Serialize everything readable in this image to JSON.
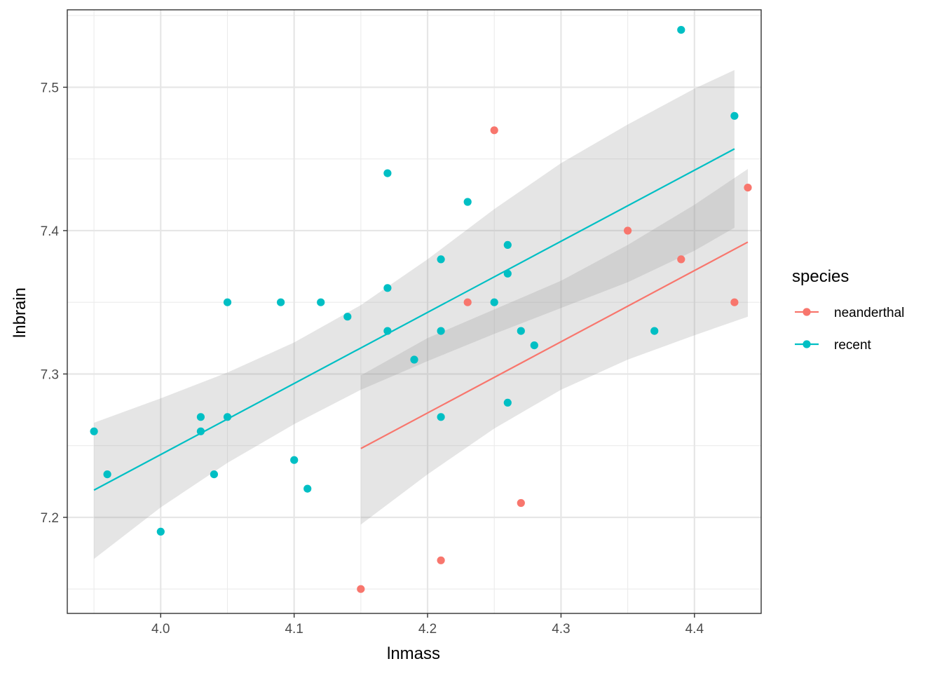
{
  "chart_data": {
    "type": "scatter",
    "xlabel": "lnmass",
    "ylabel": "lnbrain",
    "xlim": [
      3.93,
      4.45
    ],
    "ylim": [
      7.133,
      7.554
    ],
    "x_ticks": [
      4.0,
      4.1,
      4.2,
      4.3,
      4.4
    ],
    "x_tick_labels": [
      "4.0",
      "4.1",
      "4.2",
      "4.3",
      "4.4"
    ],
    "y_ticks": [
      7.2,
      7.3,
      7.4,
      7.5
    ],
    "y_tick_labels": [
      "7.2",
      "7.3",
      "7.4",
      "7.5"
    ],
    "grid": true,
    "theme": "bw",
    "legend": {
      "title": "species",
      "position": "right",
      "entries": [
        {
          "label": "neanderthal",
          "color": "#F8766D"
        },
        {
          "label": "recent",
          "color": "#00BFC4"
        }
      ]
    },
    "series": [
      {
        "name": "neanderthal",
        "color": "#F8766D",
        "points": [
          [
            4.15,
            7.15
          ],
          [
            4.21,
            7.17
          ],
          [
            4.23,
            7.35
          ],
          [
            4.25,
            7.47
          ],
          [
            4.27,
            7.21
          ],
          [
            4.35,
            7.4
          ],
          [
            4.39,
            7.38
          ],
          [
            4.43,
            7.35
          ],
          [
            4.44,
            7.43
          ]
        ],
        "fit": {
          "x": [
            4.15,
            4.44
          ],
          "y": [
            7.248,
            7.392
          ]
        },
        "ci": {
          "x": [
            4.15,
            4.2,
            4.25,
            4.3,
            4.35,
            4.4,
            4.44
          ],
          "lower": [
            7.195,
            7.23,
            7.262,
            7.289,
            7.31,
            7.327,
            7.34
          ],
          "upper": [
            7.299,
            7.325,
            7.345,
            7.365,
            7.39,
            7.418,
            7.443
          ]
        }
      },
      {
        "name": "recent",
        "color": "#00BFC4",
        "points": [
          [
            3.95,
            7.26
          ],
          [
            3.96,
            7.23
          ],
          [
            4.0,
            7.19
          ],
          [
            4.03,
            7.27
          ],
          [
            4.03,
            7.26
          ],
          [
            4.04,
            7.23
          ],
          [
            4.05,
            7.35
          ],
          [
            4.05,
            7.27
          ],
          [
            4.09,
            7.35
          ],
          [
            4.1,
            7.24
          ],
          [
            4.11,
            7.22
          ],
          [
            4.12,
            7.35
          ],
          [
            4.14,
            7.34
          ],
          [
            4.17,
            7.44
          ],
          [
            4.17,
            7.36
          ],
          [
            4.17,
            7.33
          ],
          [
            4.19,
            7.31
          ],
          [
            4.21,
            7.38
          ],
          [
            4.21,
            7.33
          ],
          [
            4.21,
            7.27
          ],
          [
            4.23,
            7.42
          ],
          [
            4.25,
            7.35
          ],
          [
            4.26,
            7.39
          ],
          [
            4.26,
            7.37
          ],
          [
            4.26,
            7.28
          ],
          [
            4.27,
            7.33
          ],
          [
            4.28,
            7.32
          ],
          [
            4.37,
            7.33
          ],
          [
            4.39,
            7.54
          ],
          [
            4.43,
            7.48
          ]
        ],
        "fit": {
          "x": [
            3.95,
            4.43
          ],
          "y": [
            7.219,
            7.457
          ]
        },
        "ci": {
          "x": [
            3.95,
            4.0,
            4.05,
            4.1,
            4.15,
            4.2,
            4.25,
            4.3,
            4.35,
            4.4,
            4.43
          ],
          "lower": [
            7.171,
            7.207,
            7.238,
            7.265,
            7.289,
            7.309,
            7.328,
            7.346,
            7.364,
            7.386,
            7.402
          ],
          "upper": [
            7.266,
            7.283,
            7.301,
            7.322,
            7.348,
            7.38,
            7.415,
            7.447,
            7.474,
            7.499,
            7.512
          ]
        }
      }
    ]
  }
}
